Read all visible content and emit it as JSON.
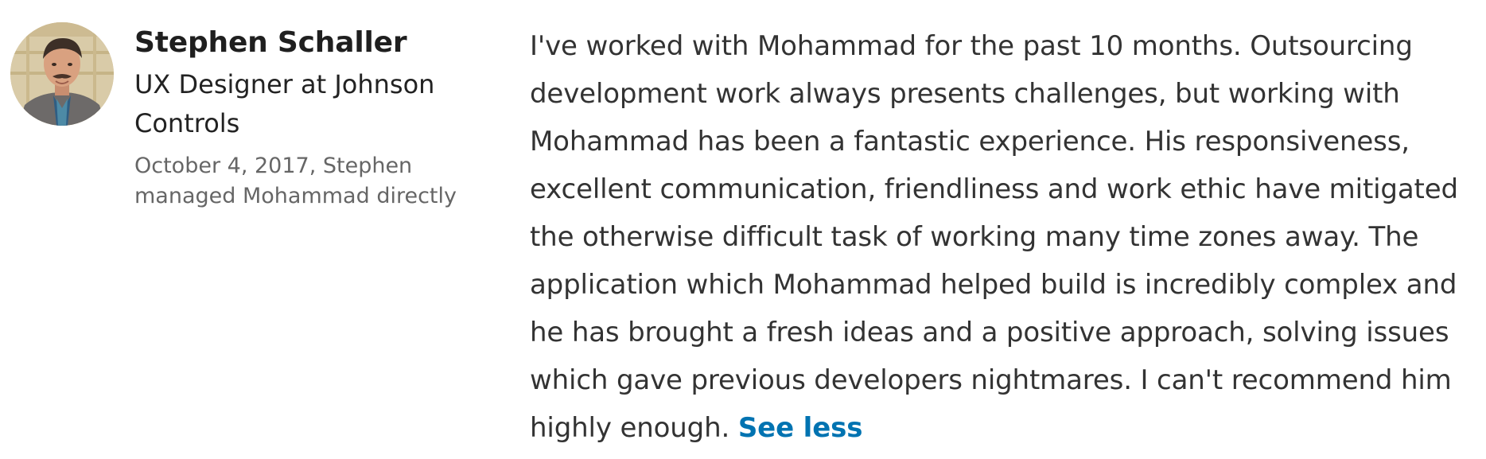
{
  "recommender": {
    "name": "Stephen Schaller",
    "headline": "UX Designer at Johnson Controls",
    "meta": "October 4, 2017, Stephen managed Mohammad directly",
    "avatar_icon": "person-photo-icon"
  },
  "recommendation": {
    "text": "I've worked with Mohammad for the past 10 months. Outsourcing development work always presents challenges, but working with Mohammad has been a fantastic experience. His responsiveness, excellent communication, friendliness and work ethic have mitigated the otherwise difficult task of working many time zones away. The application which Mohammad helped build is incredibly complex and he has brought a fresh ideas and a positive approach, solving issues which gave previous developers nightmares. I can't recommend him highly enough.",
    "toggle_label": "See less"
  },
  "colors": {
    "link": "#0073b1",
    "name": "#1f1f1f",
    "meta": "#666666",
    "body": "#333333"
  }
}
